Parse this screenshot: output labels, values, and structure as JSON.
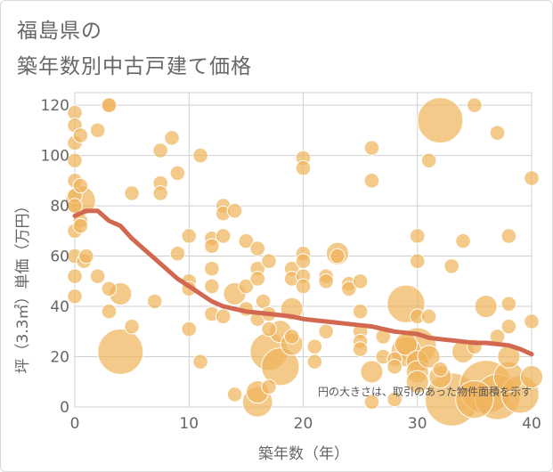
{
  "chart_data": {
    "type": "scatter",
    "title_line1": "福島県の",
    "title_line2": "築年数別中古戸建て価格",
    "xlabel": "築年数（年）",
    "ylabel": "坪（3.3㎡）単価（万円）",
    "xlim": [
      0,
      40
    ],
    "ylim": [
      0,
      125
    ],
    "xticks": [
      0,
      10,
      20,
      30,
      40
    ],
    "yticks": [
      0,
      20,
      40,
      60,
      80,
      100,
      120
    ],
    "grid": true,
    "annotation": "円の大きさは、取引のあった物件面積を示す",
    "colors": {
      "bubble": "#f0b45a",
      "trend": "#d1684f",
      "grid": "#cfcfcf",
      "axis_text": "#666666"
    },
    "trend_line": {
      "x": [
        0,
        1,
        2,
        3,
        4,
        5,
        6,
        7,
        8,
        9,
        10,
        11,
        12,
        13,
        14,
        15,
        16,
        17,
        18,
        19,
        20,
        21,
        22,
        23,
        24,
        25,
        26,
        27,
        28,
        29,
        30,
        31,
        32,
        33,
        34,
        35,
        36,
        37,
        38,
        39,
        40
      ],
      "y": [
        76,
        78,
        78,
        74,
        72,
        67,
        63,
        59,
        55,
        51,
        48,
        45,
        42,
        40,
        39,
        38,
        37.5,
        37,
        36.5,
        36,
        35,
        34.5,
        34,
        33.5,
        33,
        32.5,
        32,
        31,
        30,
        29.5,
        29,
        27.5,
        27,
        26.5,
        26,
        25.5,
        25.5,
        25,
        24.5,
        23,
        21
      ]
    },
    "points": [
      {
        "x": 0,
        "y": 117,
        "s": 1
      },
      {
        "x": 0,
        "y": 112,
        "s": 1
      },
      {
        "x": 0,
        "y": 105,
        "s": 1
      },
      {
        "x": 0,
        "y": 98,
        "s": 1
      },
      {
        "x": 0,
        "y": 90,
        "s": 1
      },
      {
        "x": 0,
        "y": 84,
        "s": 1
      },
      {
        "x": 0,
        "y": 80,
        "s": 1
      },
      {
        "x": 0,
        "y": 70,
        "s": 1
      },
      {
        "x": 0,
        "y": 60,
        "s": 1
      },
      {
        "x": 0,
        "y": 52,
        "s": 1
      },
      {
        "x": 0,
        "y": 44,
        "s": 1
      },
      {
        "x": 0.5,
        "y": 108,
        "s": 1
      },
      {
        "x": 0.5,
        "y": 88,
        "s": 1
      },
      {
        "x": 0.5,
        "y": 82,
        "s": 3
      },
      {
        "x": 0.5,
        "y": 74,
        "s": 1
      },
      {
        "x": 0.5,
        "y": 72,
        "s": 1
      },
      {
        "x": 0.8,
        "y": 58,
        "s": 1
      },
      {
        "x": 1,
        "y": 60,
        "s": 1
      },
      {
        "x": 2,
        "y": 110,
        "s": 1
      },
      {
        "x": 2,
        "y": 52,
        "s": 1
      },
      {
        "x": 3,
        "y": 120,
        "s": 1
      },
      {
        "x": 3,
        "y": 120,
        "s": 1
      },
      {
        "x": 3,
        "y": 47,
        "s": 1
      },
      {
        "x": 3,
        "y": 38,
        "s": 1
      },
      {
        "x": 4,
        "y": 45,
        "s": 2
      },
      {
        "x": 4,
        "y": 22,
        "s": 5
      },
      {
        "x": 5,
        "y": 85,
        "s": 1
      },
      {
        "x": 5,
        "y": 32,
        "s": 1
      },
      {
        "x": 7,
        "y": 42,
        "s": 1
      },
      {
        "x": 7.5,
        "y": 102,
        "s": 1
      },
      {
        "x": 7.5,
        "y": 89,
        "s": 1
      },
      {
        "x": 7.5,
        "y": 85,
        "s": 1
      },
      {
        "x": 8.5,
        "y": 107,
        "s": 1
      },
      {
        "x": 9,
        "y": 93,
        "s": 1
      },
      {
        "x": 9,
        "y": 61,
        "s": 1
      },
      {
        "x": 10,
        "y": 68,
        "s": 1
      },
      {
        "x": 10,
        "y": 50,
        "s": 1
      },
      {
        "x": 10,
        "y": 47,
        "s": 1
      },
      {
        "x": 10,
        "y": 31,
        "s": 1
      },
      {
        "x": 11,
        "y": 100,
        "s": 1
      },
      {
        "x": 11,
        "y": 18,
        "s": 1
      },
      {
        "x": 12,
        "y": 67,
        "s": 1
      },
      {
        "x": 12,
        "y": 64,
        "s": 1
      },
      {
        "x": 12,
        "y": 55,
        "s": 1
      },
      {
        "x": 12,
        "y": 48,
        "s": 1
      },
      {
        "x": 12,
        "y": 37,
        "s": 1
      },
      {
        "x": 13,
        "y": 80,
        "s": 1
      },
      {
        "x": 13,
        "y": 77,
        "s": 1
      },
      {
        "x": 13,
        "y": 68,
        "s": 1
      },
      {
        "x": 13,
        "y": 36,
        "s": 1
      },
      {
        "x": 14,
        "y": 78,
        "s": 1
      },
      {
        "x": 14,
        "y": 45,
        "s": 2
      },
      {
        "x": 14,
        "y": 5,
        "s": 1
      },
      {
        "x": 15,
        "y": 66,
        "s": 1
      },
      {
        "x": 15,
        "y": 48,
        "s": 1
      },
      {
        "x": 15,
        "y": 39,
        "s": 1
      },
      {
        "x": 16,
        "y": 63,
        "s": 1
      },
      {
        "x": 16,
        "y": 55,
        "s": 1
      },
      {
        "x": 16,
        "y": 51,
        "s": 1
      },
      {
        "x": 16,
        "y": 35,
        "s": 1
      },
      {
        "x": 16,
        "y": 6,
        "s": 2
      },
      {
        "x": 16,
        "y": 2,
        "s": 3
      },
      {
        "x": 16.5,
        "y": 42,
        "s": 1
      },
      {
        "x": 17,
        "y": 58,
        "s": 1
      },
      {
        "x": 17,
        "y": 37,
        "s": 1
      },
      {
        "x": 17,
        "y": 31,
        "s": 1
      },
      {
        "x": 17,
        "y": 22,
        "s": 4
      },
      {
        "x": 17,
        "y": 8,
        "s": 1
      },
      {
        "x": 18,
        "y": 30,
        "s": 2
      },
      {
        "x": 18,
        "y": 16,
        "s": 4
      },
      {
        "x": 19,
        "y": 55,
        "s": 1
      },
      {
        "x": 19,
        "y": 51,
        "s": 1
      },
      {
        "x": 19,
        "y": 39,
        "s": 2
      },
      {
        "x": 19,
        "y": 28,
        "s": 1
      },
      {
        "x": 19,
        "y": 25,
        "s": 2
      },
      {
        "x": 20,
        "y": 99,
        "s": 1
      },
      {
        "x": 20,
        "y": 95,
        "s": 1
      },
      {
        "x": 20,
        "y": 61,
        "s": 1
      },
      {
        "x": 20,
        "y": 58,
        "s": 1
      },
      {
        "x": 20,
        "y": 52,
        "s": 1
      },
      {
        "x": 20,
        "y": 48,
        "s": 1
      },
      {
        "x": 21,
        "y": 24,
        "s": 1
      },
      {
        "x": 21,
        "y": 18,
        "s": 1
      },
      {
        "x": 22,
        "y": 52,
        "s": 1
      },
      {
        "x": 22,
        "y": 50,
        "s": 1
      },
      {
        "x": 22,
        "y": 30,
        "s": 1
      },
      {
        "x": 23,
        "y": 61,
        "s": 2
      },
      {
        "x": 23,
        "y": 60,
        "s": 1
      },
      {
        "x": 24,
        "y": 49,
        "s": 1
      },
      {
        "x": 24,
        "y": 47,
        "s": 1
      },
      {
        "x": 25,
        "y": 50,
        "s": 1
      },
      {
        "x": 25,
        "y": 38,
        "s": 1
      },
      {
        "x": 25,
        "y": 30,
        "s": 1
      },
      {
        "x": 25,
        "y": 26,
        "s": 1
      },
      {
        "x": 25,
        "y": 23,
        "s": 1
      },
      {
        "x": 26,
        "y": 103,
        "s": 1
      },
      {
        "x": 26,
        "y": 90,
        "s": 1
      },
      {
        "x": 26,
        "y": 14,
        "s": 2
      },
      {
        "x": 26,
        "y": 2,
        "s": 1
      },
      {
        "x": 27,
        "y": 28,
        "s": 1
      },
      {
        "x": 27,
        "y": 20,
        "s": 1
      },
      {
        "x": 28,
        "y": 19,
        "s": 1
      },
      {
        "x": 28,
        "y": 16,
        "s": 1
      },
      {
        "x": 28,
        "y": 3,
        "s": 1
      },
      {
        "x": 29,
        "y": 41,
        "s": 4
      },
      {
        "x": 29,
        "y": 25,
        "s": 2
      },
      {
        "x": 29,
        "y": 22,
        "s": 3
      },
      {
        "x": 30,
        "y": 68,
        "s": 1
      },
      {
        "x": 30,
        "y": 58,
        "s": 1
      },
      {
        "x": 30,
        "y": 36,
        "s": 1
      },
      {
        "x": 30,
        "y": 24,
        "s": 4
      },
      {
        "x": 30,
        "y": 18,
        "s": 2
      },
      {
        "x": 30,
        "y": 14,
        "s": 2
      },
      {
        "x": 30,
        "y": 10,
        "s": 2
      },
      {
        "x": 31,
        "y": 98,
        "s": 1
      },
      {
        "x": 31,
        "y": 36,
        "s": 1
      },
      {
        "x": 31,
        "y": 20,
        "s": 2
      },
      {
        "x": 32,
        "y": 114,
        "s": 5
      },
      {
        "x": 32,
        "y": 15,
        "s": 1
      },
      {
        "x": 32,
        "y": 12,
        "s": 2
      },
      {
        "x": 33,
        "y": 56,
        "s": 1
      },
      {
        "x": 33,
        "y": 3,
        "s": 6
      },
      {
        "x": 34,
        "y": 66,
        "s": 1
      },
      {
        "x": 34,
        "y": 22,
        "s": 2
      },
      {
        "x": 35,
        "y": 120,
        "s": 1
      },
      {
        "x": 35,
        "y": 24,
        "s": 1
      },
      {
        "x": 35,
        "y": 3,
        "s": 4
      },
      {
        "x": 36,
        "y": 40,
        "s": 2
      },
      {
        "x": 36,
        "y": 8,
        "s": 6
      },
      {
        "x": 37,
        "y": 109,
        "s": 1
      },
      {
        "x": 37,
        "y": 28,
        "s": 1
      },
      {
        "x": 37,
        "y": 4,
        "s": 5
      },
      {
        "x": 38,
        "y": 68,
        "s": 1
      },
      {
        "x": 38,
        "y": 41,
        "s": 1
      },
      {
        "x": 38,
        "y": 32,
        "s": 1
      },
      {
        "x": 38,
        "y": 20,
        "s": 2
      },
      {
        "x": 38,
        "y": 12,
        "s": 3
      },
      {
        "x": 39,
        "y": 5,
        "s": 4
      },
      {
        "x": 40,
        "y": 91,
        "s": 1
      },
      {
        "x": 40,
        "y": 34,
        "s": 1
      },
      {
        "x": 40,
        "y": 12,
        "s": 2
      }
    ]
  }
}
